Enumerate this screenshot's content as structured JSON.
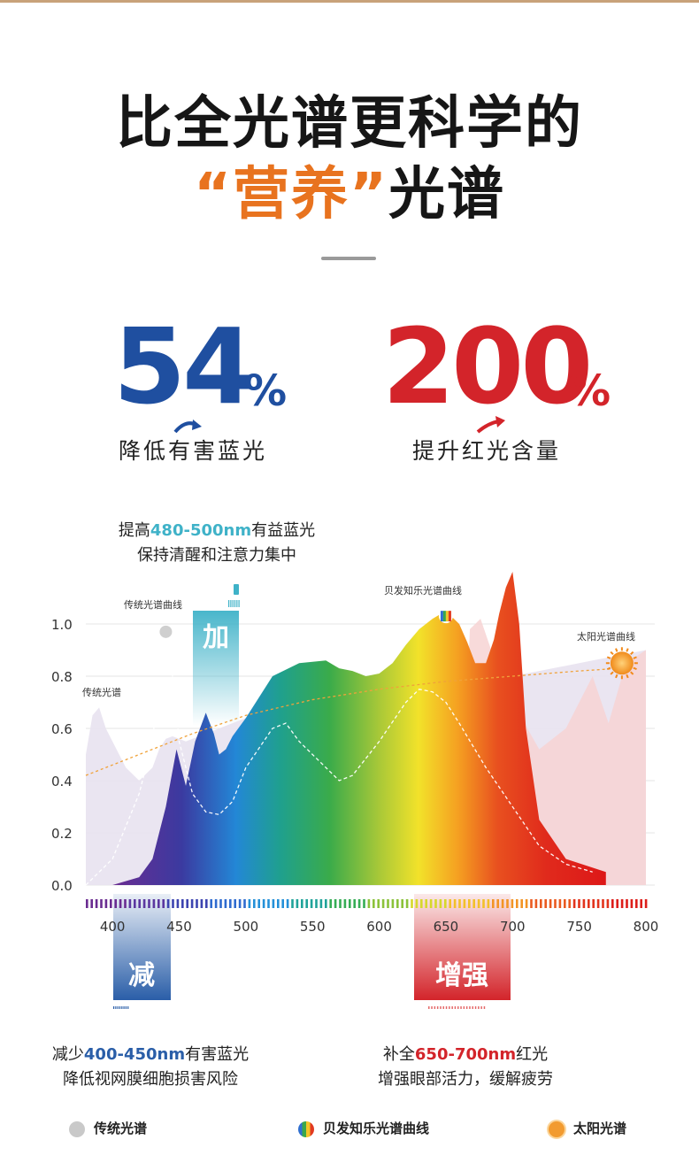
{
  "header": {
    "line1": "比全光谱更科学的",
    "line2_quote": "“营养”",
    "line2_rest": "光谱"
  },
  "stats": [
    {
      "value": "54",
      "unit": "%",
      "label": "降低有害蓝光",
      "color": "#1f4fa0"
    },
    {
      "value": "200",
      "unit": "%",
      "label": "提升红光含量",
      "color": "#d3242a"
    }
  ],
  "notes": {
    "top_prefix": "提高",
    "top_highlight": "480-500nm",
    "top_suffix": "有益蓝光",
    "top_line2": "保持清醒和注意力集中",
    "left_prefix": "减少",
    "left_highlight": "400-450nm",
    "left_suffix": "有害蓝光",
    "left_line2": "降低视网膜细胞损害风险",
    "right_prefix": "补全",
    "right_highlight": "650-700nm",
    "right_suffix": "红光",
    "right_line2": "增强眼部活力，缓解疲劳"
  },
  "bands": {
    "add": "加",
    "reduce": "减",
    "boost": "增强"
  },
  "chart_data": {
    "type": "line",
    "xlim": [
      380,
      800
    ],
    "ylim": [
      0,
      1.0
    ],
    "x_ticks": [
      "400",
      "450",
      "500",
      "550",
      "600",
      "650",
      "700",
      "750",
      "800"
    ],
    "y_ticks": [
      "0.0",
      "0.2",
      "0.4",
      "0.6",
      "0.8",
      "1.0"
    ],
    "grid": true,
    "series": [
      {
        "name": "传统光谱",
        "label": "传统光谱",
        "color": "#e3ddee",
        "x": [
          380,
          385,
          390,
          395,
          400,
          410,
          420,
          430,
          435,
          440,
          445,
          450,
          455,
          460,
          470,
          480,
          490,
          500,
          510,
          520,
          540,
          560,
          580,
          600,
          620,
          640,
          660,
          680,
          700,
          720,
          740,
          760,
          780,
          800
        ],
        "y": [
          0.5,
          0.65,
          0.68,
          0.6,
          0.55,
          0.45,
          0.4,
          0.45,
          0.52,
          0.56,
          0.57,
          0.56,
          0.55,
          0.56,
          0.58,
          0.6,
          0.62,
          0.64,
          0.66,
          0.68,
          0.7,
          0.72,
          0.74,
          0.75,
          0.76,
          0.77,
          0.78,
          0.79,
          0.8,
          0.82,
          0.84,
          0.86,
          0.88,
          0.9
        ]
      },
      {
        "name": "传统光谱曲线",
        "label": "传统光谱曲线",
        "color": "#b5b5b5",
        "x": [
          380,
          400,
          420,
          430,
          435,
          440,
          445,
          450,
          460,
          470,
          480,
          490,
          500,
          520,
          530,
          540,
          560,
          570,
          580,
          600,
          620,
          630,
          640,
          650,
          660,
          680,
          700,
          720,
          740,
          760
        ],
        "y": [
          0.0,
          0.1,
          0.35,
          0.55,
          0.8,
          0.95,
          0.8,
          0.55,
          0.35,
          0.28,
          0.27,
          0.32,
          0.45,
          0.6,
          0.62,
          0.55,
          0.45,
          0.4,
          0.42,
          0.55,
          0.7,
          0.75,
          0.74,
          0.7,
          0.62,
          0.45,
          0.3,
          0.15,
          0.08,
          0.05
        ]
      },
      {
        "name": "贝发知乐光谱曲线",
        "label": "贝发知乐光谱曲线",
        "color": "rainbow",
        "x": [
          400,
          420,
          430,
          440,
          448,
          455,
          462,
          470,
          476,
          480,
          485,
          490,
          500,
          520,
          540,
          560,
          570,
          580,
          590,
          600,
          610,
          620,
          630,
          640,
          650,
          660,
          666,
          672,
          680,
          686,
          690,
          695,
          700,
          705,
          710,
          720,
          740,
          770
        ],
        "y": [
          0.0,
          0.03,
          0.1,
          0.3,
          0.52,
          0.38,
          0.55,
          0.66,
          0.58,
          0.5,
          0.52,
          0.57,
          0.64,
          0.8,
          0.85,
          0.86,
          0.83,
          0.82,
          0.8,
          0.81,
          0.85,
          0.92,
          0.98,
          1.02,
          1.05,
          1.0,
          0.93,
          0.85,
          0.85,
          0.94,
          1.04,
          1.14,
          1.2,
          1.0,
          0.6,
          0.25,
          0.1,
          0.05
        ]
      },
      {
        "name": "太阳光谱曲线",
        "label": "太阳光谱曲线",
        "color": "#f0a23a",
        "x": [
          380,
          420,
          460,
          500,
          550,
          600,
          650,
          700,
          750,
          780
        ],
        "y": [
          0.42,
          0.5,
          0.58,
          0.65,
          0.71,
          0.75,
          0.78,
          0.8,
          0.82,
          0.83
        ]
      }
    ]
  },
  "legend": [
    {
      "label": "传统光谱",
      "icon": "gray-dot-icon",
      "color": "#c9c9c9"
    },
    {
      "label": "贝发知乐光谱曲线",
      "icon": "rainbow-dot-icon",
      "color": "#e25a22"
    },
    {
      "label": "太阳光谱",
      "icon": "sun-dot-icon",
      "color": "#f29b30"
    }
  ]
}
